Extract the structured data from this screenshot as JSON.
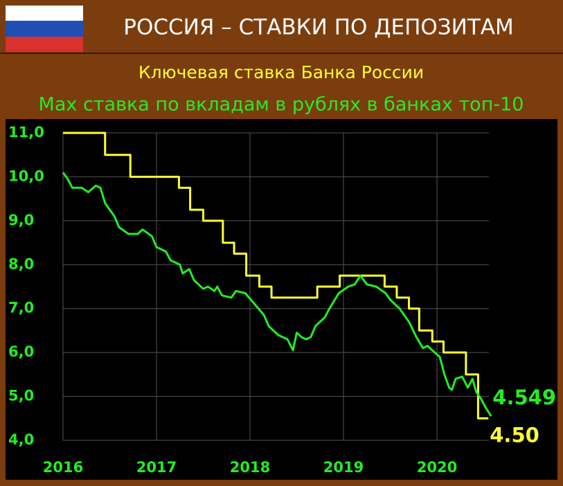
{
  "chart_data": {
    "type": "line",
    "title": "РОССИЯ – СТАВКИ ПО ДЕПОЗИТАМ",
    "series": [
      {
        "name": "Ключевая ставка Банка России",
        "color": "#ffff33",
        "step": true,
        "x": [
          2016,
          2016.45,
          2016.72,
          2017.24,
          2017.36,
          2017.5,
          2017.71,
          2017.83,
          2017.96,
          2018.1,
          2018.23,
          2018.72,
          2018.96,
          2019.44,
          2019.57,
          2019.7,
          2019.81,
          2019.95,
          2020.07,
          2020.31,
          2020.44,
          2020.55
        ],
        "values": [
          11,
          10.5,
          10,
          9.75,
          9.25,
          9,
          8.5,
          8.25,
          7.75,
          7.5,
          7.25,
          7.5,
          7.75,
          7.5,
          7.25,
          7,
          6.5,
          6.25,
          6,
          5.5,
          4.5,
          4.5
        ]
      },
      {
        "name": "Max ставка по вкладам в рублях в банках топ-10",
        "color": "#22ee22",
        "step": false,
        "x": [
          2016,
          2016.05,
          2016.1,
          2016.2,
          2016.27,
          2016.35,
          2016.4,
          2016.45,
          2016.55,
          2016.6,
          2016.7,
          2016.8,
          2016.85,
          2016.95,
          2017,
          2017.1,
          2017.15,
          2017.25,
          2017.28,
          2017.35,
          2017.4,
          2017.5,
          2017.55,
          2017.62,
          2017.65,
          2017.7,
          2017.8,
          2017.85,
          2017.95,
          2018.05,
          2018.15,
          2018.2,
          2018.3,
          2018.4,
          2018.46,
          2018.5,
          2018.55,
          2018.6,
          2018.65,
          2018.7,
          2018.8,
          2018.85,
          2018.95,
          2019.05,
          2019.12,
          2019.18,
          2019.25,
          2019.35,
          2019.45,
          2019.5,
          2019.6,
          2019.7,
          2019.78,
          2019.85,
          2019.9,
          2019.95,
          2020.03,
          2020.08,
          2020.13,
          2020.16,
          2020.2,
          2020.27,
          2020.33,
          2020.38,
          2020.42,
          2020.47,
          2020.52,
          2020.58
        ],
        "values": [
          10.1,
          9.95,
          9.75,
          9.75,
          9.65,
          9.8,
          9.75,
          9.4,
          9.1,
          8.85,
          8.7,
          8.7,
          8.8,
          8.65,
          8.4,
          8.3,
          8.1,
          8.0,
          7.8,
          7.9,
          7.65,
          7.45,
          7.5,
          7.4,
          7.5,
          7.3,
          7.25,
          7.4,
          7.35,
          7.1,
          6.85,
          6.6,
          6.4,
          6.3,
          6.05,
          6.45,
          6.35,
          6.3,
          6.35,
          6.6,
          6.8,
          7.0,
          7.35,
          7.5,
          7.55,
          7.75,
          7.55,
          7.5,
          7.35,
          7.2,
          7.0,
          6.7,
          6.35,
          6.1,
          6.15,
          6.05,
          5.9,
          5.5,
          5.2,
          5.15,
          5.4,
          5.45,
          5.2,
          5.4,
          5.1,
          4.95,
          4.75,
          4.549
        ]
      }
    ],
    "annotations": [
      {
        "text": "4.549",
        "series": 1
      },
      {
        "text": "4.50",
        "series": 0
      }
    ],
    "xlim": [
      2016,
      2020.6
    ],
    "xticks": [
      2016,
      2017,
      2018,
      2019,
      2020
    ],
    "ylim": [
      4,
      11
    ],
    "yticks": [
      {
        "value": 4,
        "label": "4,0"
      },
      {
        "value": 5,
        "label": "5,0"
      },
      {
        "value": 6,
        "label": "6,0"
      },
      {
        "value": 7,
        "label": "7,0"
      },
      {
        "value": 8,
        "label": "8,0"
      },
      {
        "value": 9,
        "label": "9,0"
      },
      {
        "value": 10,
        "label": "10,0"
      },
      {
        "value": 11,
        "label": "11,0"
      }
    ],
    "grid": true
  }
}
